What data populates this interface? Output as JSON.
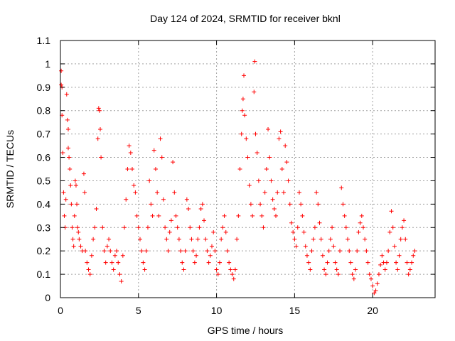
{
  "chart_data": {
    "type": "scatter",
    "title": "Day 124 of 2024, SRMTID for receiver bknl",
    "xlabel": "GPS time / hours",
    "ylabel": "SRMTID / TECUs",
    "xlim": [
      0,
      24
    ],
    "ylim": [
      0,
      1.1
    ],
    "xticks": [
      0,
      5,
      10,
      15,
      20
    ],
    "yticks": [
      0,
      0.1,
      0.2,
      0.3,
      0.4,
      0.5,
      0.6,
      0.7,
      0.8,
      0.9,
      1,
      1.1
    ],
    "xtick_labels": [
      "0",
      "5",
      "10",
      "15",
      "20"
    ],
    "ytick_labels": [
      "0",
      "0.1",
      "0.2",
      "0.3",
      "0.4",
      "0.5",
      "0.6",
      "0.7",
      "0.8",
      "0.9",
      "1",
      "1.1"
    ],
    "grid": true,
    "marker": "+",
    "color": "#ff0000",
    "series": [
      {
        "name": "SRMTID",
        "points": [
          [
            0.05,
            0.97
          ],
          [
            0.05,
            0.91
          ],
          [
            0.1,
            0.9
          ],
          [
            0.1,
            0.78
          ],
          [
            0.15,
            0.62
          ],
          [
            0.2,
            0.45
          ],
          [
            0.25,
            0.35
          ],
          [
            0.3,
            0.3
          ],
          [
            0.35,
            0.42
          ],
          [
            0.4,
            0.87
          ],
          [
            0.45,
            0.76
          ],
          [
            0.5,
            0.72
          ],
          [
            0.5,
            0.64
          ],
          [
            0.55,
            0.6
          ],
          [
            0.6,
            0.55
          ],
          [
            0.65,
            0.48
          ],
          [
            0.7,
            0.4
          ],
          [
            0.75,
            0.3
          ],
          [
            0.8,
            0.25
          ],
          [
            0.85,
            0.22
          ],
          [
            0.9,
            0.35
          ],
          [
            0.95,
            0.5
          ],
          [
            1.0,
            0.48
          ],
          [
            1.05,
            0.4
          ],
          [
            1.1,
            0.3
          ],
          [
            1.15,
            0.28
          ],
          [
            1.2,
            0.25
          ],
          [
            1.3,
            0.22
          ],
          [
            1.4,
            0.2
          ],
          [
            1.5,
            0.53
          ],
          [
            1.55,
            0.45
          ],
          [
            1.6,
            0.2
          ],
          [
            1.7,
            0.15
          ],
          [
            1.8,
            0.12
          ],
          [
            1.9,
            0.1
          ],
          [
            2.0,
            0.18
          ],
          [
            2.1,
            0.25
          ],
          [
            2.2,
            0.3
          ],
          [
            2.3,
            0.38
          ],
          [
            2.4,
            0.68
          ],
          [
            2.45,
            0.81
          ],
          [
            2.5,
            0.8
          ],
          [
            2.55,
            0.72
          ],
          [
            2.6,
            0.6
          ],
          [
            2.7,
            0.3
          ],
          [
            2.8,
            0.2
          ],
          [
            2.9,
            0.15
          ],
          [
            3.0,
            0.22
          ],
          [
            3.1,
            0.25
          ],
          [
            3.2,
            0.2
          ],
          [
            3.3,
            0.15
          ],
          [
            3.4,
            0.12
          ],
          [
            3.5,
            0.18
          ],
          [
            3.6,
            0.2
          ],
          [
            3.7,
            0.15
          ],
          [
            3.8,
            0.1
          ],
          [
            3.9,
            0.07
          ],
          [
            4.0,
            0.18
          ],
          [
            4.1,
            0.3
          ],
          [
            4.2,
            0.42
          ],
          [
            4.3,
            0.55
          ],
          [
            4.4,
            0.65
          ],
          [
            4.5,
            0.62
          ],
          [
            4.6,
            0.55
          ],
          [
            4.7,
            0.48
          ],
          [
            4.8,
            0.45
          ],
          [
            4.9,
            0.35
          ],
          [
            5.0,
            0.3
          ],
          [
            5.1,
            0.25
          ],
          [
            5.2,
            0.2
          ],
          [
            5.3,
            0.15
          ],
          [
            5.4,
            0.12
          ],
          [
            5.5,
            0.2
          ],
          [
            5.6,
            0.3
          ],
          [
            5.7,
            0.5
          ],
          [
            5.8,
            0.4
          ],
          [
            5.9,
            0.35
          ],
          [
            6.0,
            0.63
          ],
          [
            6.1,
            0.55
          ],
          [
            6.2,
            0.45
          ],
          [
            6.3,
            0.35
          ],
          [
            6.4,
            0.68
          ],
          [
            6.5,
            0.6
          ],
          [
            6.6,
            0.42
          ],
          [
            6.7,
            0.3
          ],
          [
            6.8,
            0.25
          ],
          [
            6.9,
            0.2
          ],
          [
            7.0,
            0.28
          ],
          [
            7.1,
            0.33
          ],
          [
            7.2,
            0.58
          ],
          [
            7.3,
            0.45
          ],
          [
            7.4,
            0.35
          ],
          [
            7.5,
            0.3
          ],
          [
            7.6,
            0.25
          ],
          [
            7.7,
            0.2
          ],
          [
            7.8,
            0.15
          ],
          [
            7.9,
            0.12
          ],
          [
            8.0,
            0.2
          ],
          [
            8.1,
            0.42
          ],
          [
            8.2,
            0.38
          ],
          [
            8.3,
            0.3
          ],
          [
            8.4,
            0.25
          ],
          [
            8.5,
            0.2
          ],
          [
            8.6,
            0.15
          ],
          [
            8.7,
            0.18
          ],
          [
            8.8,
            0.25
          ],
          [
            8.9,
            0.3
          ],
          [
            9.0,
            0.38
          ],
          [
            9.1,
            0.4
          ],
          [
            9.2,
            0.33
          ],
          [
            9.3,
            0.25
          ],
          [
            9.4,
            0.2
          ],
          [
            9.5,
            0.15
          ],
          [
            9.6,
            0.18
          ],
          [
            9.7,
            0.22
          ],
          [
            9.8,
            0.28
          ],
          [
            9.9,
            0.2
          ],
          [
            10.0,
            0.12
          ],
          [
            10.1,
            0.1
          ],
          [
            10.2,
            0.15
          ],
          [
            10.3,
            0.25
          ],
          [
            10.4,
            0.3
          ],
          [
            10.5,
            0.35
          ],
          [
            10.6,
            0.28
          ],
          [
            10.7,
            0.2
          ],
          [
            10.8,
            0.15
          ],
          [
            10.9,
            0.12
          ],
          [
            11.0,
            0.1
          ],
          [
            11.1,
            0.08
          ],
          [
            11.2,
            0.12
          ],
          [
            11.3,
            0.25
          ],
          [
            11.4,
            0.35
          ],
          [
            11.5,
            0.55
          ],
          [
            11.6,
            0.7
          ],
          [
            11.65,
            0.8
          ],
          [
            11.7,
            0.85
          ],
          [
            11.75,
            0.95
          ],
          [
            11.8,
            0.78
          ],
          [
            11.9,
            0.68
          ],
          [
            12.0,
            0.6
          ],
          [
            12.1,
            0.48
          ],
          [
            12.2,
            0.4
          ],
          [
            12.3,
            0.35
          ],
          [
            12.4,
            0.88
          ],
          [
            12.45,
            1.01
          ],
          [
            12.5,
            0.7
          ],
          [
            12.6,
            0.62
          ],
          [
            12.7,
            0.5
          ],
          [
            12.8,
            0.4
          ],
          [
            12.9,
            0.35
          ],
          [
            13.0,
            0.3
          ],
          [
            13.1,
            0.45
          ],
          [
            13.2,
            0.55
          ],
          [
            13.3,
            0.72
          ],
          [
            13.4,
            0.6
          ],
          [
            13.5,
            0.5
          ],
          [
            13.6,
            0.42
          ],
          [
            13.7,
            0.38
          ],
          [
            13.8,
            0.35
          ],
          [
            13.9,
            0.45
          ],
          [
            14.0,
            0.68
          ],
          [
            14.1,
            0.71
          ],
          [
            14.2,
            0.55
          ],
          [
            14.3,
            0.45
          ],
          [
            14.4,
            0.65
          ],
          [
            14.5,
            0.58
          ],
          [
            14.6,
            0.5
          ],
          [
            14.7,
            0.4
          ],
          [
            14.8,
            0.32
          ],
          [
            14.9,
            0.28
          ],
          [
            15.0,
            0.25
          ],
          [
            15.1,
            0.22
          ],
          [
            15.2,
            0.3
          ],
          [
            15.3,
            0.45
          ],
          [
            15.4,
            0.4
          ],
          [
            15.5,
            0.35
          ],
          [
            15.6,
            0.28
          ],
          [
            15.7,
            0.22
          ],
          [
            15.8,
            0.18
          ],
          [
            15.9,
            0.15
          ],
          [
            16.0,
            0.12
          ],
          [
            16.1,
            0.2
          ],
          [
            16.2,
            0.25
          ],
          [
            16.3,
            0.3
          ],
          [
            16.4,
            0.45
          ],
          [
            16.5,
            0.4
          ],
          [
            16.6,
            0.32
          ],
          [
            16.7,
            0.25
          ],
          [
            16.8,
            0.18
          ],
          [
            16.9,
            0.12
          ],
          [
            17.0,
            0.1
          ],
          [
            17.1,
            0.15
          ],
          [
            17.2,
            0.2
          ],
          [
            17.3,
            0.25
          ],
          [
            17.4,
            0.3
          ],
          [
            17.5,
            0.22
          ],
          [
            17.6,
            0.15
          ],
          [
            17.7,
            0.12
          ],
          [
            17.8,
            0.1
          ],
          [
            17.9,
            0.2
          ],
          [
            18.0,
            0.47
          ],
          [
            18.1,
            0.4
          ],
          [
            18.2,
            0.35
          ],
          [
            18.3,
            0.3
          ],
          [
            18.4,
            0.25
          ],
          [
            18.5,
            0.2
          ],
          [
            18.6,
            0.15
          ],
          [
            18.7,
            0.1
          ],
          [
            18.8,
            0.08
          ],
          [
            18.9,
            0.12
          ],
          [
            19.0,
            0.2
          ],
          [
            19.1,
            0.28
          ],
          [
            19.2,
            0.32
          ],
          [
            19.3,
            0.35
          ],
          [
            19.4,
            0.3
          ],
          [
            19.5,
            0.25
          ],
          [
            19.6,
            0.2
          ],
          [
            19.7,
            0.15
          ],
          [
            19.8,
            0.1
          ],
          [
            19.9,
            0.08
          ],
          [
            20.0,
            0.05
          ],
          [
            20.1,
            0.02
          ],
          [
            20.2,
            0.03
          ],
          [
            20.3,
            0.06
          ],
          [
            20.4,
            0.1
          ],
          [
            20.5,
            0.14
          ],
          [
            20.6,
            0.18
          ],
          [
            20.7,
            0.15
          ],
          [
            20.8,
            0.12
          ],
          [
            20.9,
            0.15
          ],
          [
            21.0,
            0.2
          ],
          [
            21.1,
            0.28
          ],
          [
            21.2,
            0.37
          ],
          [
            21.3,
            0.3
          ],
          [
            21.4,
            0.22
          ],
          [
            21.5,
            0.15
          ],
          [
            21.6,
            0.12
          ],
          [
            21.7,
            0.18
          ],
          [
            21.8,
            0.25
          ],
          [
            21.9,
            0.3
          ],
          [
            22.0,
            0.33
          ],
          [
            22.1,
            0.25
          ],
          [
            22.2,
            0.15
          ],
          [
            22.3,
            0.1
          ],
          [
            22.4,
            0.12
          ],
          [
            22.5,
            0.15
          ],
          [
            22.6,
            0.18
          ],
          [
            22.7,
            0.2
          ]
        ]
      }
    ]
  }
}
